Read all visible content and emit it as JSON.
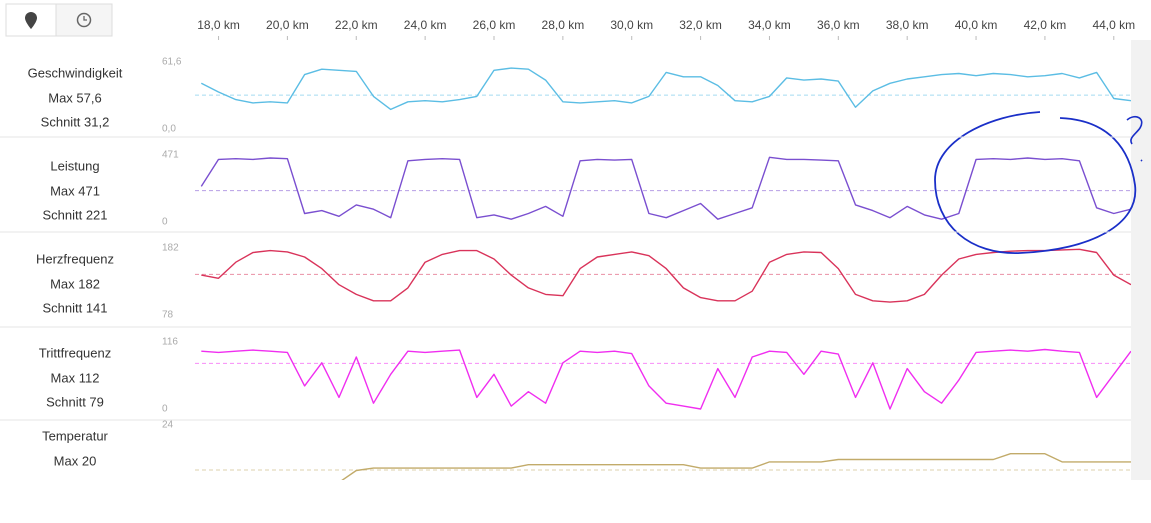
{
  "km_axis": {
    "xlim": [
      16.3,
      44.5
    ],
    "xticks": [
      {
        "value": 18,
        "label": "18,0 km"
      },
      {
        "value": 20,
        "label": "20,0 km"
      },
      {
        "value": 22,
        "label": "22,0 km"
      },
      {
        "value": 24,
        "label": "24,0 km"
      },
      {
        "value": 26,
        "label": "26,0 km"
      },
      {
        "value": 28,
        "label": "28,0 km"
      },
      {
        "value": 30,
        "label": "30,0 km"
      },
      {
        "value": 32,
        "label": "32,0 km"
      },
      {
        "value": 34,
        "label": "34,0 km"
      },
      {
        "value": 36,
        "label": "36,0 km"
      },
      {
        "value": 38,
        "label": "38,0 km"
      },
      {
        "value": 40,
        "label": "40,0 km"
      },
      {
        "value": 42,
        "label": "42,0 km"
      },
      {
        "value": 44,
        "label": "44,0 km"
      }
    ],
    "x": [
      17.5,
      18,
      18.5,
      19,
      19.5,
      20,
      20.5,
      21,
      21.5,
      22,
      22.5,
      23,
      23.5,
      24,
      24.5,
      25,
      25.5,
      26,
      26.5,
      27,
      27.5,
      28,
      28.5,
      29,
      29.5,
      30,
      30.5,
      31,
      31.5,
      32,
      32.5,
      33,
      33.5,
      34,
      34.5,
      35,
      35.5,
      36,
      36.5,
      37,
      37.5,
      38,
      38.5,
      39,
      39.5,
      40,
      40.5,
      41,
      41.5,
      42,
      42.5,
      43,
      43.5,
      44,
      44.5
    ]
  },
  "chart_data": [
    {
      "type": "line",
      "title": "Geschwindigkeit",
      "color": "#5bbde4",
      "stats": [
        {
          "label": "Max 57,6",
          "value": 57.6
        },
        {
          "label": "Schnitt 31,2",
          "value": 31.2
        }
      ],
      "ylim": [
        0,
        61.6
      ],
      "yticks": [
        {
          "value": 61.6,
          "label": "61,6"
        },
        {
          "value": 0,
          "label": "0,0"
        }
      ],
      "values": [
        42,
        34,
        27,
        24,
        25,
        24,
        50,
        55,
        54,
        53,
        30,
        18,
        25,
        26,
        25,
        27,
        30,
        54,
        56,
        55,
        45,
        25,
        24,
        25,
        26,
        24,
        30,
        52,
        48,
        48,
        40,
        26,
        25,
        30,
        47,
        45,
        46,
        44,
        20,
        35,
        42,
        46,
        48,
        50,
        51,
        49,
        51,
        50,
        48,
        49,
        51,
        47,
        52,
        28,
        26
      ]
    },
    {
      "type": "line",
      "title": "Leistung",
      "color": "#7a4fd0",
      "stats": [
        {
          "label": "Max 471",
          "value": 471
        },
        {
          "label": "Schnitt 221",
          "value": 221
        }
      ],
      "ylim": [
        0,
        471
      ],
      "yticks": [
        471,
        0
      ],
      "values": [
        250,
        440,
        445,
        440,
        450,
        445,
        60,
        80,
        40,
        120,
        90,
        30,
        430,
        440,
        445,
        440,
        30,
        50,
        20,
        60,
        110,
        40,
        430,
        440,
        435,
        440,
        60,
        30,
        80,
        130,
        20,
        60,
        100,
        455,
        440,
        440,
        435,
        430,
        120,
        80,
        30,
        110,
        50,
        20,
        60,
        440,
        445,
        440,
        450,
        440,
        445,
        430,
        100,
        60,
        90
      ]
    },
    {
      "type": "line",
      "title": "Herzfrequenz",
      "color": "#d9335a",
      "stats": [
        {
          "label": "Max 182",
          "value": 182
        },
        {
          "label": "Schnitt 141",
          "value": 141
        }
      ],
      "ylim": [
        78,
        182
      ],
      "yticks": [
        182,
        78
      ],
      "values": [
        140,
        135,
        160,
        175,
        178,
        176,
        168,
        150,
        125,
        110,
        100,
        100,
        120,
        160,
        172,
        178,
        178,
        165,
        140,
        120,
        110,
        108,
        150,
        168,
        172,
        176,
        170,
        150,
        120,
        105,
        100,
        100,
        115,
        160,
        172,
        176,
        175,
        150,
        110,
        100,
        98,
        100,
        110,
        140,
        165,
        172,
        175,
        177,
        178,
        178,
        179,
        180,
        175,
        140,
        125
      ]
    },
    {
      "type": "line",
      "title": "Trittfrequenz",
      "color": "#f02ef0",
      "stats": [
        {
          "label": "Max 112",
          "value": 112
        },
        {
          "label": "Schnitt 79",
          "value": 79
        }
      ],
      "ylim": [
        0,
        116
      ],
      "yticks": [
        116,
        0
      ],
      "values": [
        100,
        98,
        100,
        102,
        100,
        98,
        40,
        80,
        20,
        90,
        10,
        60,
        100,
        98,
        100,
        102,
        20,
        60,
        5,
        30,
        10,
        80,
        100,
        98,
        100,
        96,
        40,
        10,
        5,
        0,
        70,
        20,
        90,
        100,
        98,
        60,
        100,
        95,
        20,
        80,
        0,
        70,
        30,
        10,
        50,
        98,
        100,
        102,
        100,
        103,
        100,
        98,
        20,
        60,
        100
      ]
    },
    {
      "type": "line",
      "title": "Temperatur",
      "color": "#c2ab6a",
      "stats": [
        {
          "label": "Max 20",
          "value": 20
        }
      ],
      "average": 14.6,
      "ylim": [
        10,
        24
      ],
      "yticks": [
        24
      ],
      "values": [
        null,
        null,
        null,
        null,
        null,
        null,
        null,
        null,
        12,
        14.5,
        15,
        15,
        15,
        15,
        15,
        15,
        15,
        15,
        15,
        15.7,
        15.7,
        15.7,
        15.7,
        15.7,
        15.7,
        15.7,
        15.7,
        15.7,
        15.7,
        15,
        15,
        15,
        15,
        16.3,
        16.3,
        16.3,
        16.3,
        16.8,
        16.8,
        16.8,
        16.8,
        16.8,
        16.8,
        16.8,
        16.8,
        16.8,
        16.8,
        18,
        18,
        18,
        16.3,
        16.3,
        16.3,
        16.3,
        16.3
      ]
    }
  ]
}
